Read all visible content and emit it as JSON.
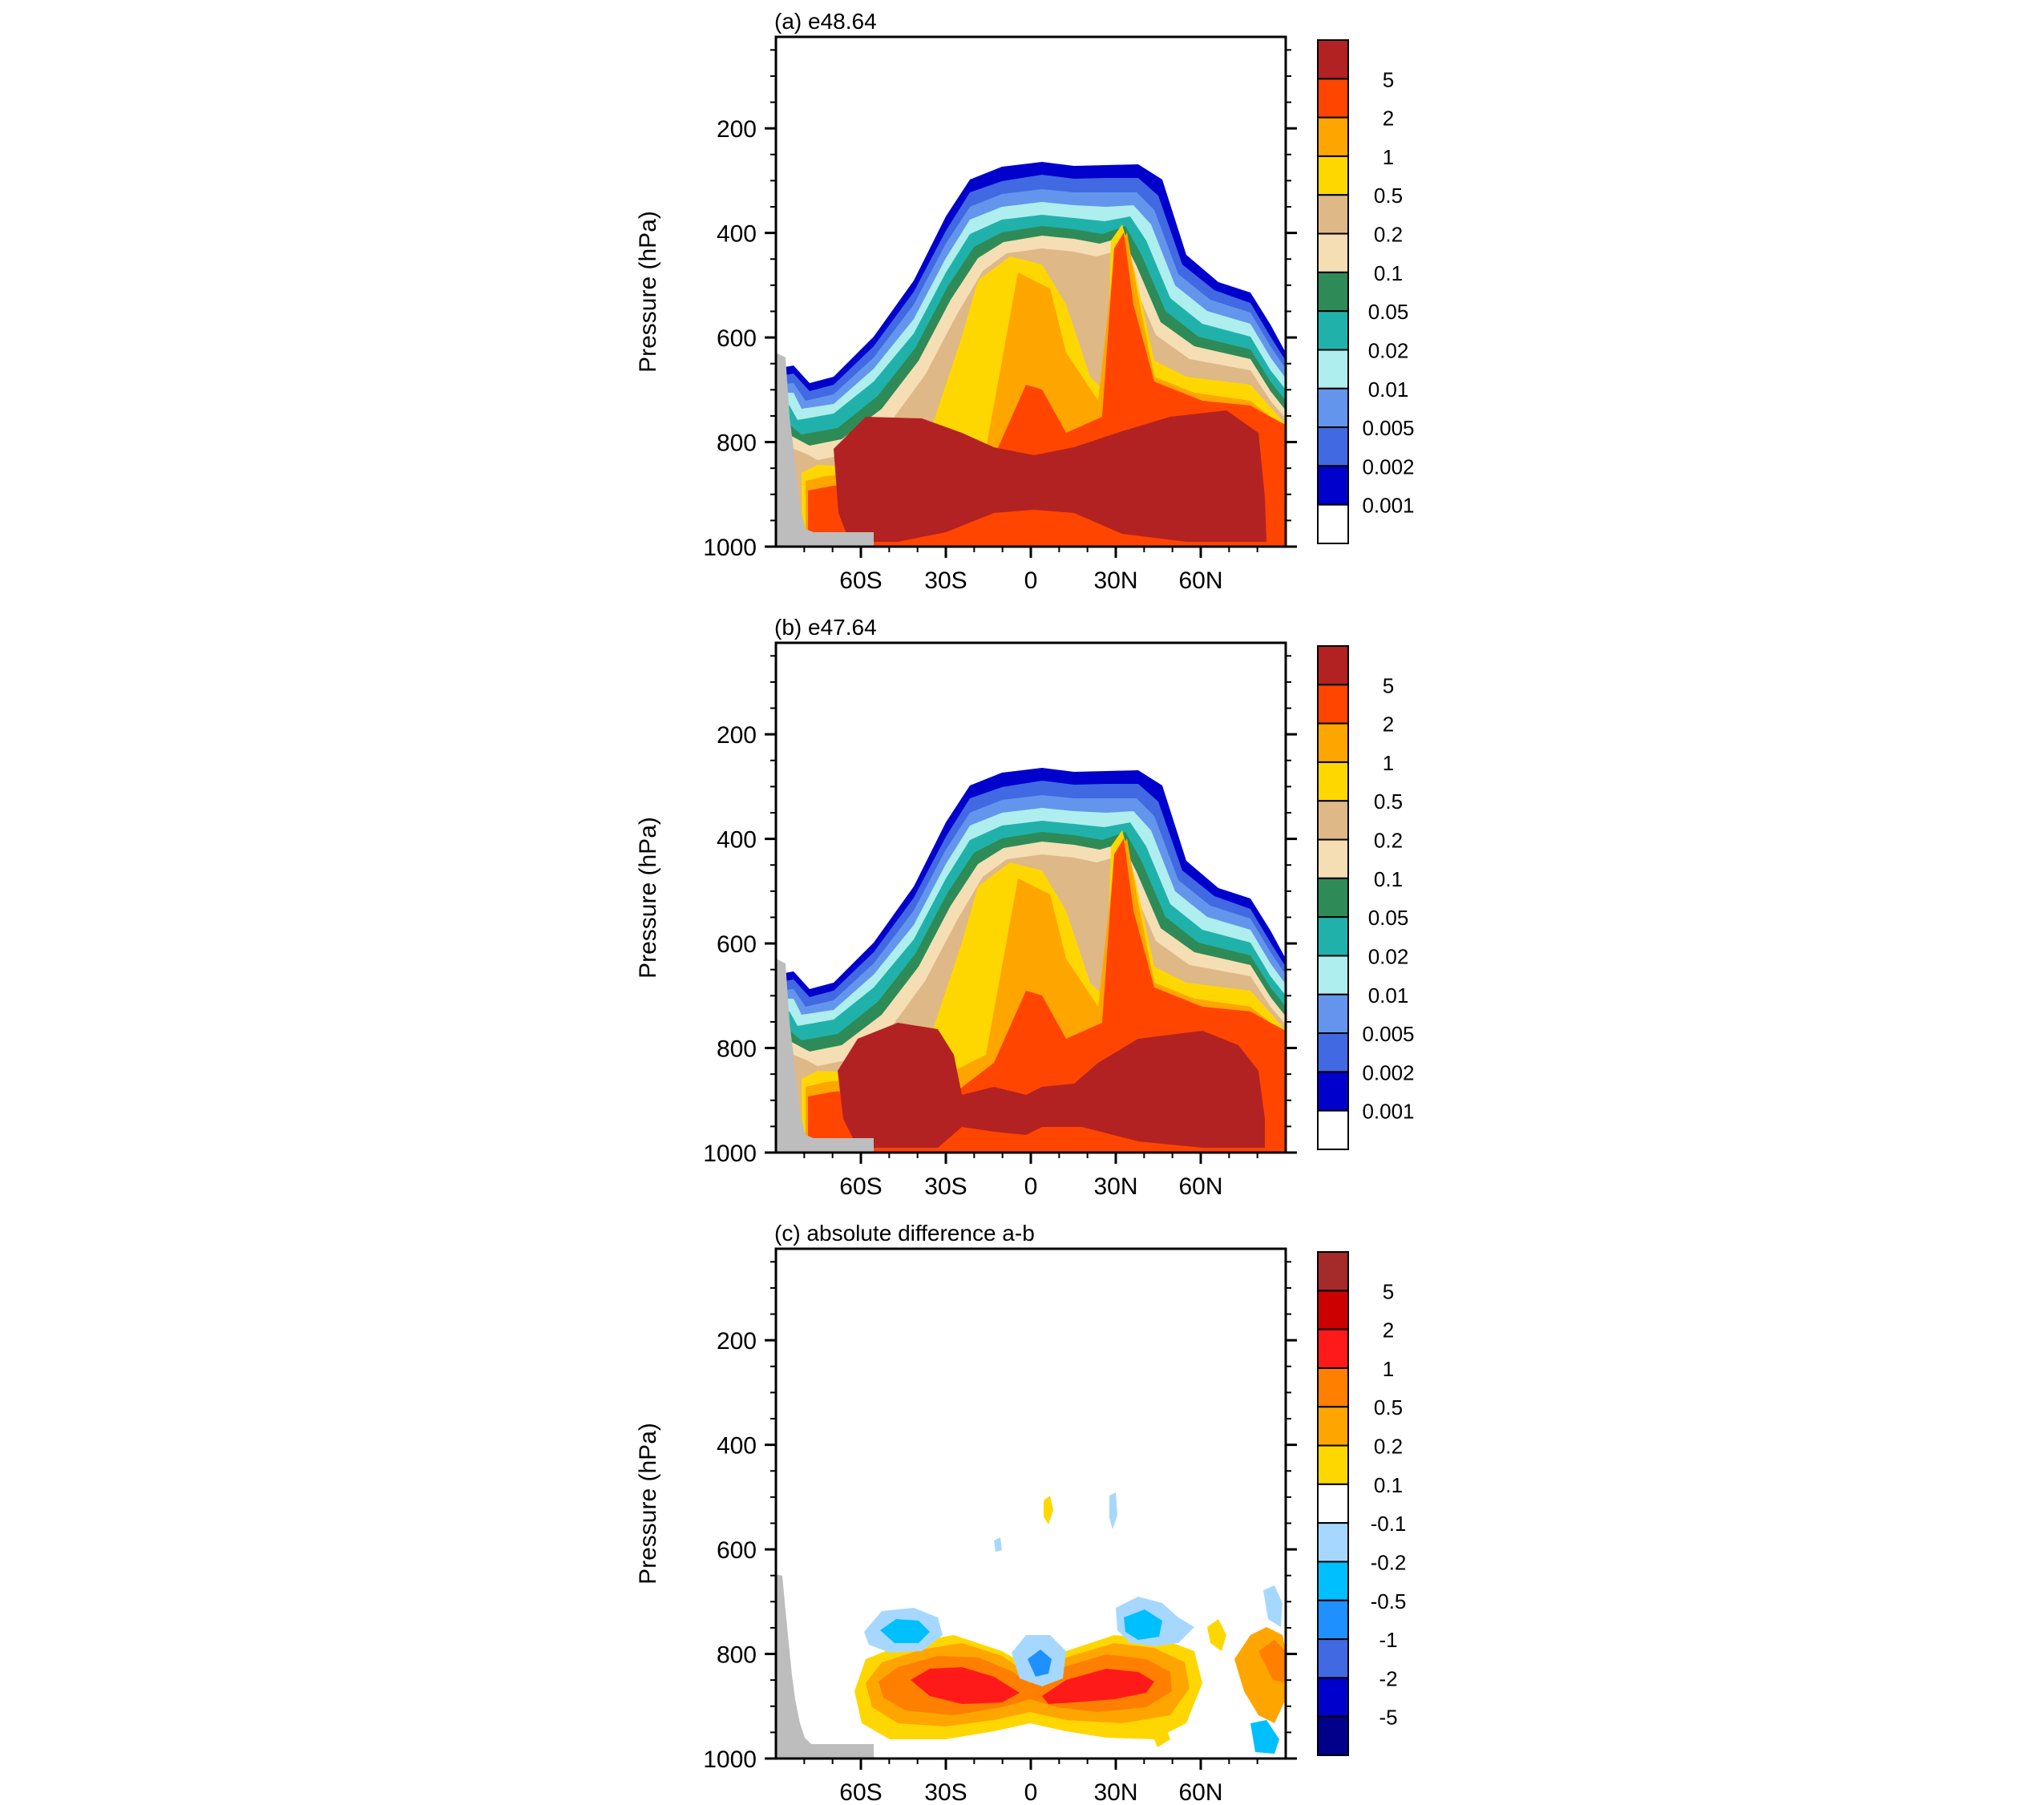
{
  "figure": {
    "panels": [
      {
        "id": "a",
        "title": "(a) e48.64",
        "ylabel": "Pressure (hPa)",
        "colorbar": {
          "labels": [
            "5",
            "2",
            "1",
            "0.5",
            "0.2",
            "0.1",
            "0.05",
            "0.02",
            "0.01",
            "0.005",
            "0.002",
            "0.001"
          ],
          "colors": [
            "#b22222",
            "#ff4500",
            "#ffa500",
            "#ffd700",
            "#deb887",
            "#f5deb3",
            "#2e8b57",
            "#20b2aa",
            "#afeeee",
            "#6495ed",
            "#4169e1",
            "#0000cd",
            "#ffffff"
          ]
        }
      },
      {
        "id": "b",
        "title": "(b) e47.64",
        "ylabel": "Pressure (hPa)",
        "colorbar": {
          "labels": [
            "5",
            "2",
            "1",
            "0.5",
            "0.2",
            "0.1",
            "0.05",
            "0.02",
            "0.01",
            "0.005",
            "0.002",
            "0.001"
          ],
          "colors": [
            "#b22222",
            "#ff4500",
            "#ffa500",
            "#ffd700",
            "#deb887",
            "#f5deb3",
            "#2e8b57",
            "#20b2aa",
            "#afeeee",
            "#6495ed",
            "#4169e1",
            "#0000cd",
            "#ffffff"
          ]
        }
      },
      {
        "id": "c",
        "title": "(c) absolute difference a-b",
        "ylabel": "Pressure (hPa)",
        "colorbar": {
          "labels": [
            "5",
            "2",
            "1",
            "0.5",
            "0.2",
            "0.1",
            "-0.1",
            "-0.2",
            "-0.5",
            "-1",
            "-2",
            "-5"
          ],
          "colors": [
            "#a52a2a",
            "#cc0000",
            "#ff1a1a",
            "#ff7f00",
            "#ffa500",
            "#ffd700",
            "#ffffff",
            "#a6d8ff",
            "#00bfff",
            "#1e90ff",
            "#4169e1",
            "#0000cd",
            "#00008b"
          ]
        }
      }
    ]
  },
  "chart_data": [
    {
      "type": "heatmap",
      "title": "(a) e48.64",
      "ylabel": "Pressure (hPa)",
      "xlabel": "",
      "ylim": [
        1000,
        25
      ],
      "y_ticks": [
        200,
        400,
        600,
        800,
        1000
      ],
      "x_ticks": [
        "60S",
        "30S",
        "0",
        "30N",
        "60N"
      ],
      "x_tick_values": [
        -60,
        -30,
        0,
        30,
        60
      ],
      "xlim": [
        -90,
        90
      ],
      "contour_levels": [
        0.001,
        0.002,
        0.005,
        0.01,
        0.02,
        0.05,
        0.1,
        0.2,
        0.5,
        1,
        2,
        5
      ],
      "cloud_top_hpa": {
        "lat": [
          -88,
          -80,
          -60,
          -40,
          -30,
          -20,
          -10,
          0,
          10,
          20,
          30,
          40,
          50,
          60,
          70,
          80,
          88
        ],
        "p": [
          655,
          650,
          570,
          430,
          330,
          280,
          265,
          262,
          265,
          265,
          268,
          330,
          450,
          510,
          530,
          580,
          600
        ]
      },
      "max_value_region": {
        "lat": [
          -62,
          45
        ],
        "p": [
          760,
          985
        ],
        "value": "> 5"
      },
      "terrain_mask": "grey block over Antarctic latitudes near surface"
    },
    {
      "type": "heatmap",
      "title": "(b) e47.64",
      "ylabel": "Pressure (hPa)",
      "xlabel": "",
      "ylim": [
        1000,
        25
      ],
      "y_ticks": [
        200,
        400,
        600,
        800,
        1000
      ],
      "x_ticks": [
        "60S",
        "30S",
        "0",
        "30N",
        "60N"
      ],
      "x_tick_values": [
        -60,
        -30,
        0,
        30,
        60
      ],
      "xlim": [
        -90,
        90
      ],
      "contour_levels": [
        0.001,
        0.002,
        0.005,
        0.01,
        0.02,
        0.05,
        0.1,
        0.2,
        0.5,
        1,
        2,
        5
      ],
      "cloud_top_hpa": {
        "lat": [
          -88,
          -80,
          -60,
          -40,
          -30,
          -20,
          -10,
          0,
          10,
          20,
          30,
          40,
          50,
          60,
          70,
          80,
          88
        ],
        "p": [
          655,
          650,
          570,
          430,
          330,
          280,
          265,
          262,
          265,
          265,
          268,
          330,
          450,
          510,
          530,
          580,
          600
        ]
      },
      "max_value_region": {
        "lat": [
          -62,
          45
        ],
        "p": [
          760,
          985
        ],
        "value": "> 5"
      },
      "terrain_mask": "grey block over Antarctic latitudes near surface"
    },
    {
      "type": "heatmap",
      "title": "(c) absolute difference a-b",
      "ylabel": "Pressure (hPa)",
      "xlabel": "",
      "ylim": [
        1000,
        25
      ],
      "y_ticks": [
        200,
        400,
        600,
        800,
        1000
      ],
      "x_ticks": [
        "60S",
        "30S",
        "0",
        "30N",
        "60N"
      ],
      "x_tick_values": [
        -60,
        -30,
        0,
        30,
        60
      ],
      "xlim": [
        -90,
        90
      ],
      "contour_levels": [
        -5,
        -2,
        -1,
        -0.5,
        -0.2,
        -0.1,
        0.1,
        0.2,
        0.5,
        1,
        2,
        5
      ],
      "features": [
        {
          "lat": [
            -30,
            0
          ],
          "p": [
            830,
            900
          ],
          "value": "1 to 2"
        },
        {
          "lat": [
            0,
            30
          ],
          "p": [
            830,
            900
          ],
          "value": "1 to 2"
        },
        {
          "lat": [
            -40,
            -30
          ],
          "p": [
            720,
            780
          ],
          "value": "-0.2 to -0.5"
        },
        {
          "lat": [
            -10,
            5
          ],
          "p": [
            780,
            860
          ],
          "value": "-0.5 to -1"
        },
        {
          "lat": [
            25,
            40
          ],
          "p": [
            700,
            780
          ],
          "value": "-0.2 to -0.5"
        }
      ],
      "terrain_mask": "grey block over Antarctic latitudes near surface"
    }
  ]
}
